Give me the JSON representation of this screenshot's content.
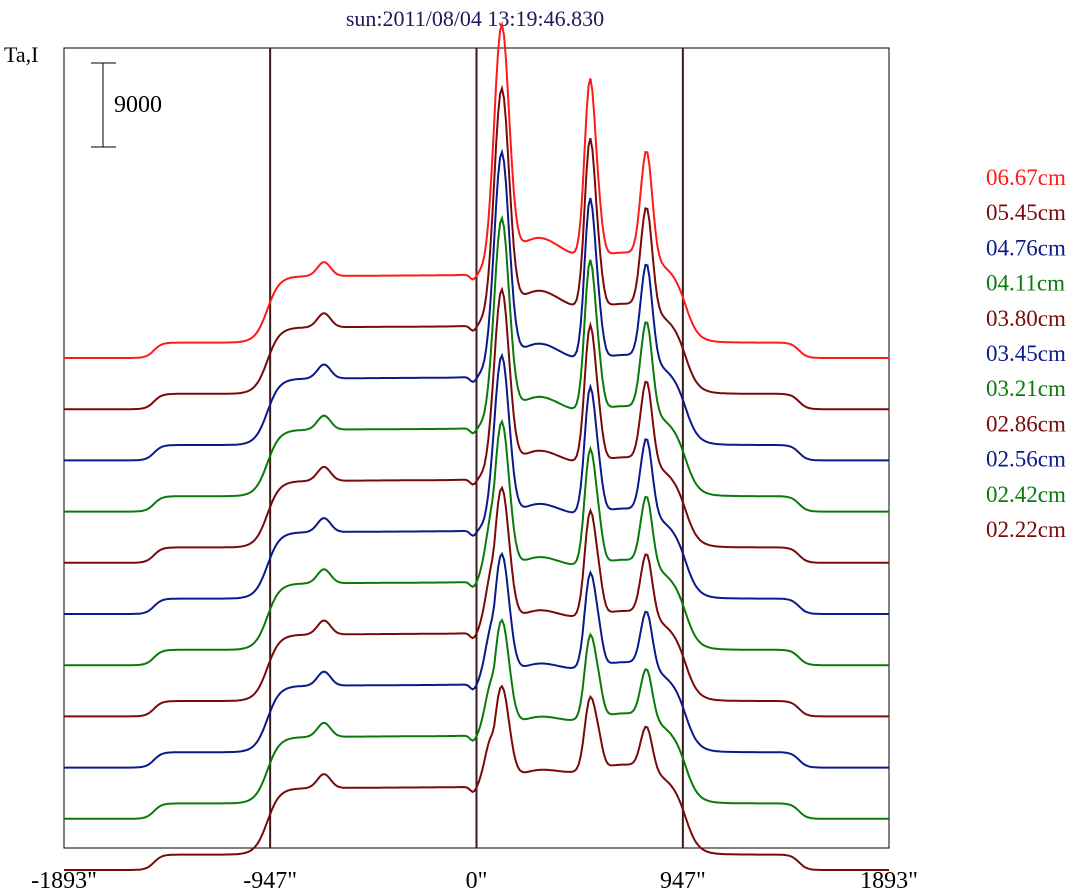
{
  "chart_data": {
    "type": "line",
    "title": "sun:2011/08/04 13:19:46.830",
    "ylabel": "Ta,I",
    "scale_bar_label": "9000",
    "scale_bar_value": 9000,
    "xlim": [
      -1893,
      1893
    ],
    "x_ticks": [
      {
        "value": -1893,
        "label": "-1893\""
      },
      {
        "value": -947,
        "label": "-947\""
      },
      {
        "value": 0,
        "label": "0\""
      },
      {
        "value": 947,
        "label": "947\""
      },
      {
        "value": 1893,
        "label": "1893\""
      }
    ],
    "vertical_lines": [
      -947,
      0,
      947
    ],
    "legend_position": "right",
    "series": [
      {
        "name": "06.67cm",
        "color": "#ff1a1a",
        "amp": 1.0
      },
      {
        "name": "05.45cm",
        "color": "#7a0a0a",
        "amp": 0.95
      },
      {
        "name": "04.76cm",
        "color": "#0a1a8a",
        "amp": 0.9
      },
      {
        "name": "04.11cm",
        "color": "#0a7a0a",
        "amp": 0.84
      },
      {
        "name": "03.80cm",
        "color": "#7a0a0a",
        "amp": 0.76
      },
      {
        "name": "03.45cm",
        "color": "#0a1a8a",
        "amp": 0.7
      },
      {
        "name": "03.21cm",
        "color": "#0a7a0a",
        "amp": 0.64
      },
      {
        "name": "02.86cm",
        "color": "#7a0a0a",
        "amp": 0.58
      },
      {
        "name": "02.56cm",
        "color": "#0a1a8a",
        "amp": 0.52
      },
      {
        "name": "02.42cm",
        "color": "#0a7a0a",
        "amp": 0.46
      },
      {
        "name": "02.22cm",
        "color": "#7a0a0a",
        "amp": 0.4
      }
    ]
  }
}
